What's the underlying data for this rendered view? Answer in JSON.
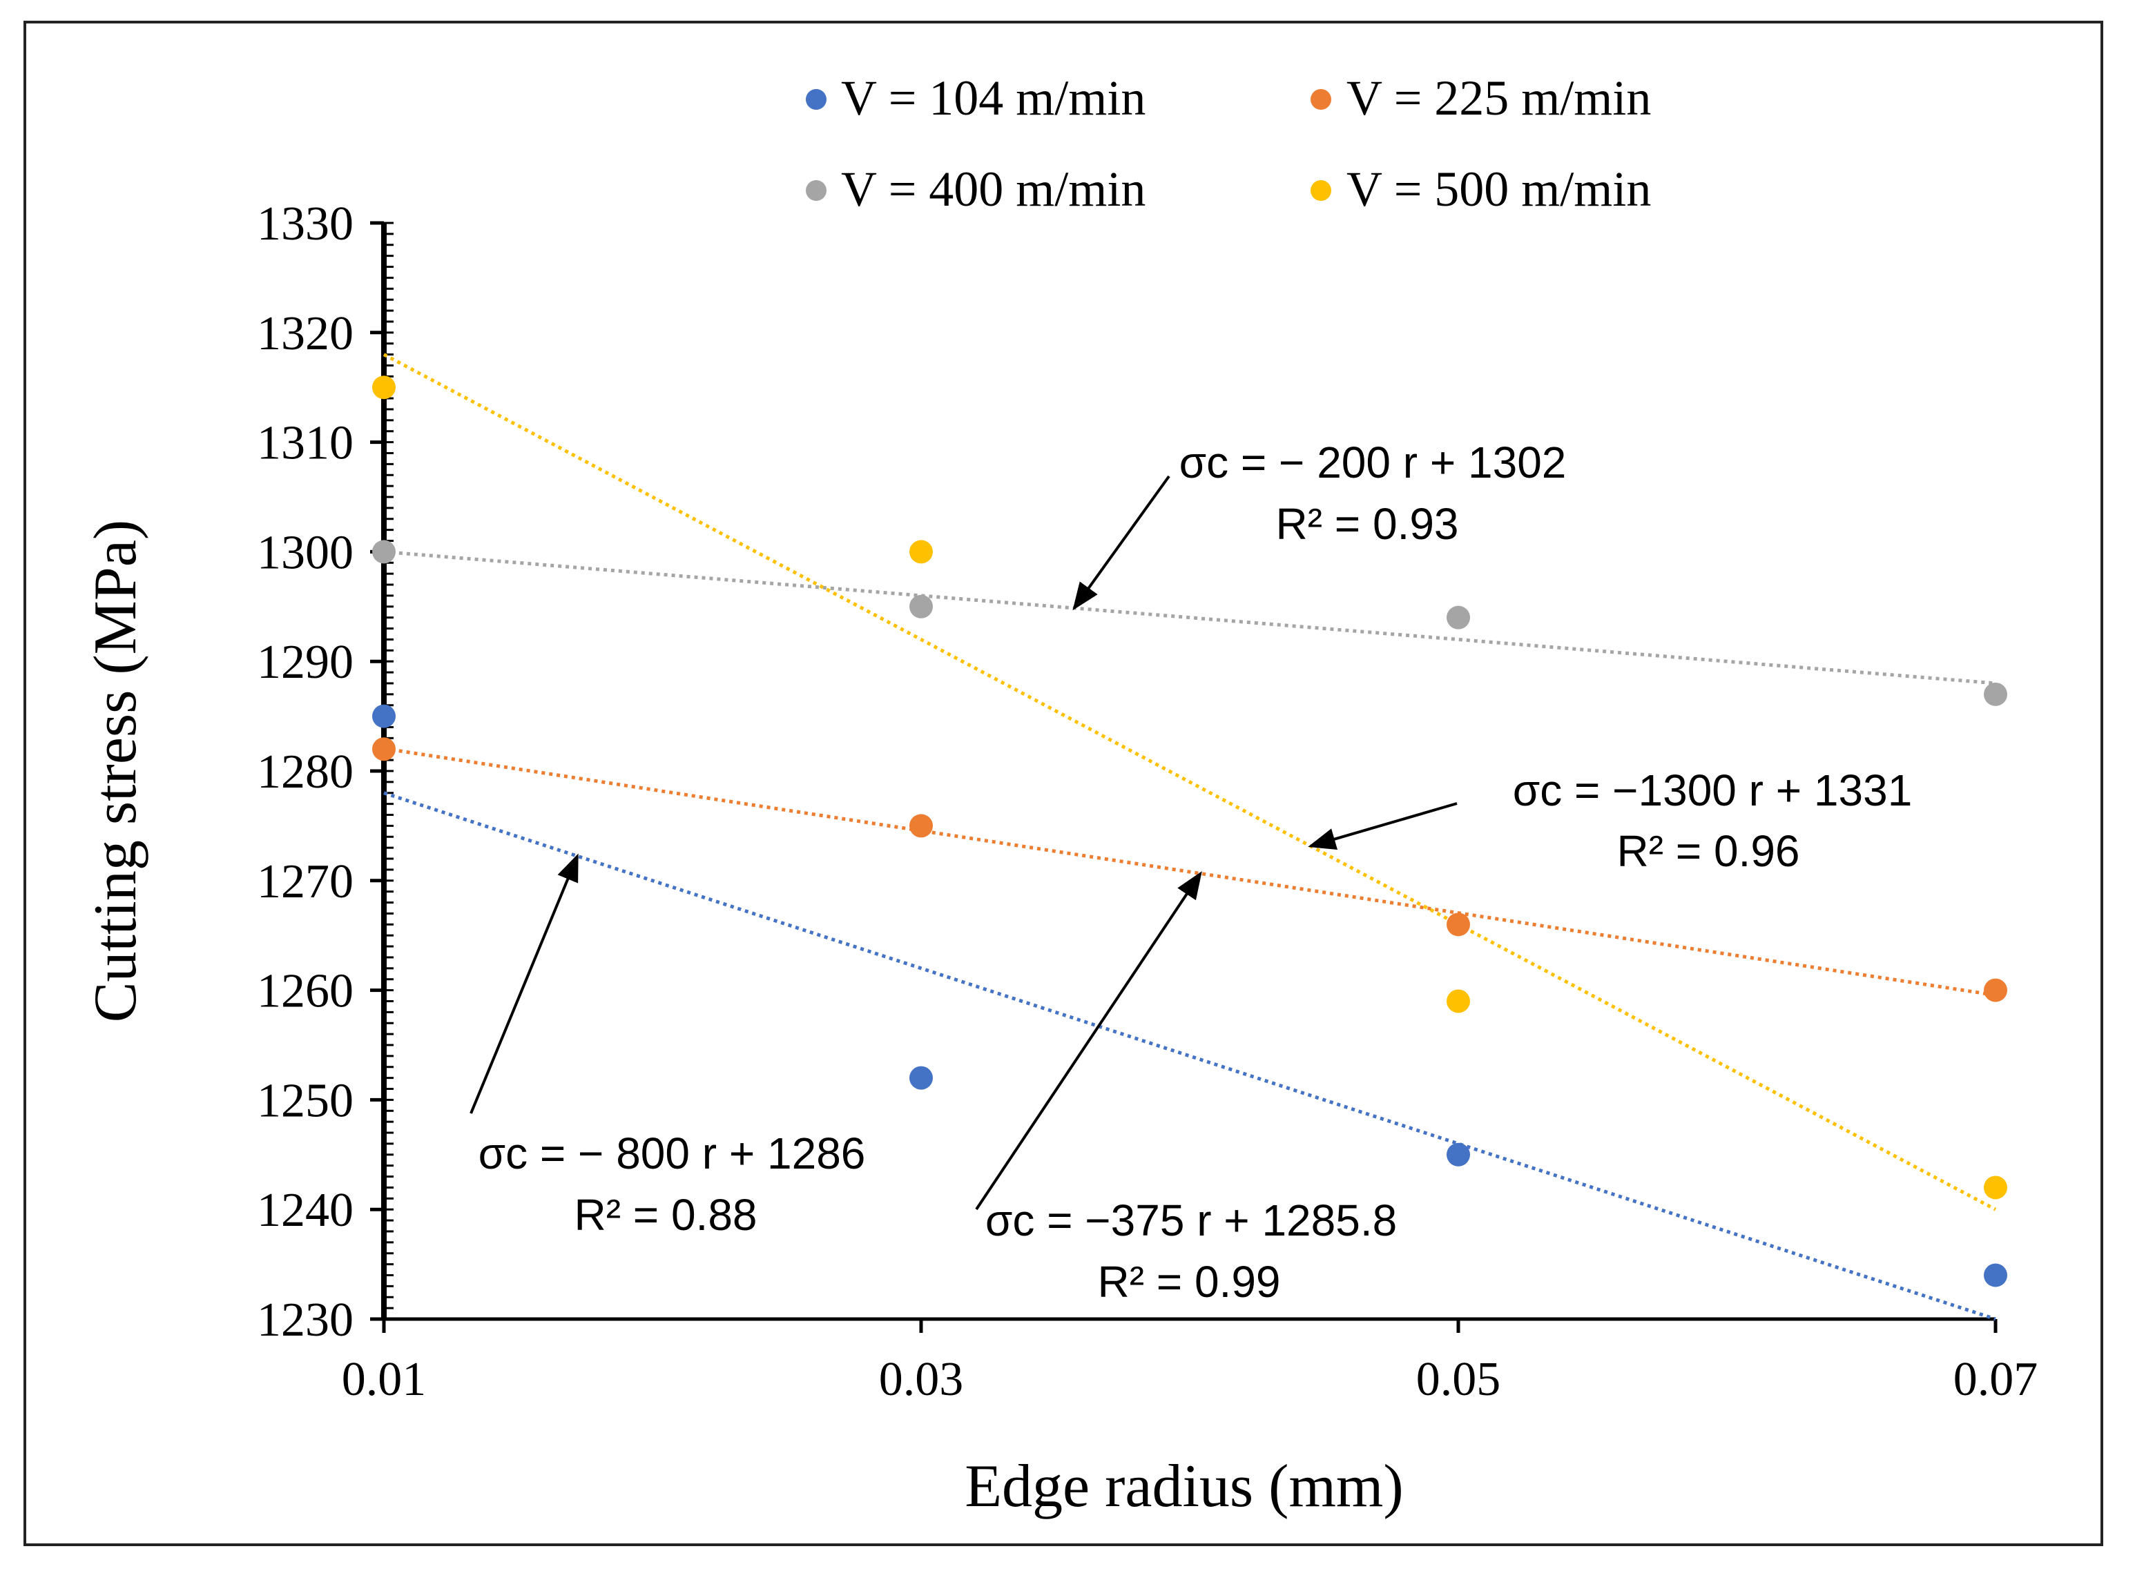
{
  "chart_data": {
    "type": "scatter",
    "title": "",
    "xlabel": "Edge radius (mm)",
    "ylabel": "Cutting stress (MPa)",
    "x": [
      0.01,
      0.03,
      0.05,
      0.07
    ],
    "x_tick_labels": [
      "0.01",
      "0.03",
      "0.05",
      "0.07"
    ],
    "xlim": [
      0.01,
      0.07
    ],
    "ylim": [
      1230,
      1330
    ],
    "y_ticks": [
      1230,
      1240,
      1250,
      1260,
      1270,
      1280,
      1290,
      1300,
      1310,
      1320,
      1330
    ],
    "grid": false,
    "legend_position": "top",
    "series": [
      {
        "name": "V = 104 m/min",
        "color": "#4472C4",
        "values": [
          1285,
          1252,
          1245,
          1234
        ],
        "trend": {
          "slope": -800,
          "intercept": 1286,
          "r2": 0.88
        }
      },
      {
        "name": "V = 225 m/min",
        "color": "#ED7D31",
        "values": [
          1282,
          1275,
          1266,
          1260
        ],
        "trend": {
          "slope": -375,
          "intercept": 1285.8,
          "r2": 0.99
        }
      },
      {
        "name": "V = 400 m/min",
        "color": "#A5A5A5",
        "values": [
          1300,
          1295,
          1294,
          1287
        ],
        "trend": {
          "slope": -200,
          "intercept": 1302,
          "r2": 0.93
        }
      },
      {
        "name": "V = 500 m/min",
        "color": "#FFC000",
        "values": [
          1315,
          1300,
          1259,
          1242
        ],
        "trend": {
          "slope": -1300,
          "intercept": 1331,
          "r2": 0.96
        }
      }
    ],
    "annotations": [
      {
        "series": 2,
        "equation": "σc = − 200 r + 1302",
        "r2_label": "R² = 0.93",
        "arrow_x": 0.0357
      },
      {
        "series": 3,
        "equation": "σc = −1300 r + 1331",
        "r2_label": "R² = 0.96",
        "arrow_x": 0.0445
      },
      {
        "series": 0,
        "equation": "σc = − 800 r + 1286",
        "r2_label": "R² = 0.88",
        "arrow_x": 0.0172
      },
      {
        "series": 1,
        "equation": "σc = −375 r + 1285.8",
        "r2_label": "R² = 0.99",
        "arrow_x": 0.0404
      }
    ]
  }
}
